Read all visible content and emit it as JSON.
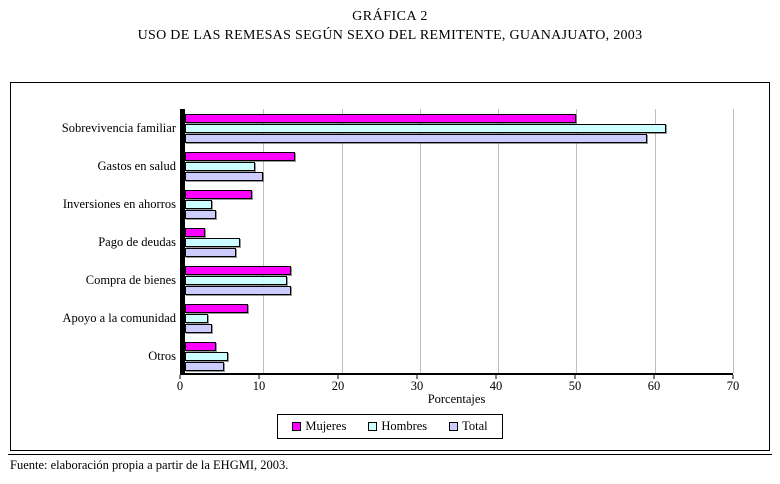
{
  "title": {
    "line1": "GRÁFICA 2",
    "line2": "USO DE LAS REMESAS SEGÚN SEXO DEL REMITENTE, GUANAJUATO, 2003"
  },
  "footer": {
    "source": "Fuente: elaboración propia a partir de la EHGMI, 2003."
  },
  "chart_data": {
    "type": "bar",
    "orientation": "horizontal",
    "title": "USO DE LAS REMESAS SEGÚN SEXO DEL REMITENTE, GUANAJUATO, 2003",
    "categories": [
      "Sobrevivencia familiar",
      "Gastos en salud",
      "Inversiones en ahorros",
      "Pago de deudas",
      "Compra de bienes",
      "Apoyo a la comunidad",
      "Otros"
    ],
    "series": [
      {
        "name": "Mujeres",
        "color": "#FF00FF",
        "values": [
          50,
          14,
          8.5,
          2.5,
          13.5,
          8,
          4
        ]
      },
      {
        "name": "Hombres",
        "color": "#CCFFFF",
        "values": [
          61.5,
          9,
          3.5,
          7,
          13,
          3,
          5.5
        ]
      },
      {
        "name": "Total",
        "color": "#CCCCFF",
        "values": [
          59,
          10,
          4,
          6.5,
          13.5,
          3.5,
          5
        ]
      }
    ],
    "xlabel": "Porcentajes",
    "ylabel": "",
    "xlim": [
      0,
      70
    ],
    "xticks": [
      0,
      10,
      20,
      30,
      40,
      50,
      60,
      70
    ],
    "grid": true,
    "gridline_color": "#bdbdbd",
    "legend_position": "bottom"
  }
}
